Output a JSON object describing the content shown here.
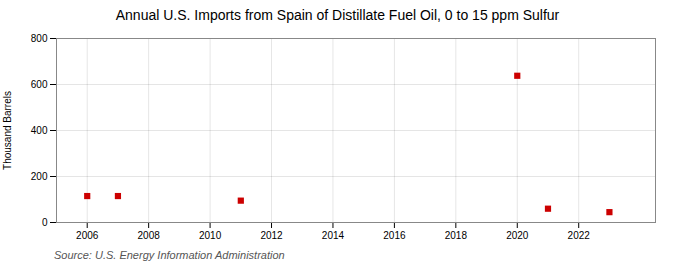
{
  "chart_data": {
    "type": "scatter",
    "title": "Annual U.S. Imports from Spain of Distillate Fuel Oil, 0 to 15 ppm Sulfur",
    "ylabel": "Thousand Barrels",
    "source": "Source: U.S. Energy Information Administration",
    "x": [
      2006,
      2007,
      2011,
      2020,
      2021,
      2023
    ],
    "values": [
      115,
      115,
      95,
      638,
      60,
      45
    ],
    "color": "#cc0000",
    "marker": "square",
    "xlim": [
      2005.0,
      2024.5
    ],
    "ylim": [
      0,
      800
    ],
    "xticks": [
      2006,
      2008,
      2010,
      2012,
      2014,
      2016,
      2018,
      2020,
      2022
    ],
    "yticks": [
      0,
      200,
      400,
      600,
      800
    ],
    "grid": true
  }
}
